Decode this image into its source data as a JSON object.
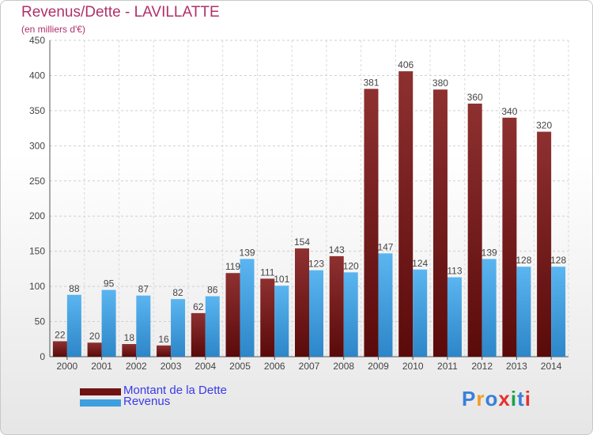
{
  "header": {
    "title": "Revenus/Dette - LAVILLATTE",
    "subtitle": "(en milliers d'€)"
  },
  "logo": {
    "text": "Proxiti",
    "letter_colors": [
      "#3a7fd9",
      "#f29c1f",
      "#3a7fd9",
      "#e4312f",
      "#1aa34a",
      "#3a7fd9",
      "#e4312f"
    ]
  },
  "chart_data": {
    "type": "bar",
    "title": "Revenus/Dette - LAVILLATTE",
    "subtitle": "(en milliers d'€)",
    "categories": [
      "2000",
      "2001",
      "2002",
      "2003",
      "2004",
      "2005",
      "2006",
      "2007",
      "2008",
      "2009",
      "2010",
      "2011",
      "2012",
      "2013",
      "2014"
    ],
    "series": [
      {
        "name": "Montant de la Dette",
        "color": "#7a1c1c",
        "values": [
          22,
          20,
          18,
          16,
          62,
          119,
          111,
          154,
          143,
          381,
          406,
          380,
          360,
          340,
          320
        ]
      },
      {
        "name": "Revenus",
        "color": "#3d9fe0",
        "values": [
          88,
          95,
          87,
          82,
          86,
          139,
          101,
          123,
          120,
          147,
          124,
          113,
          139,
          128,
          128
        ]
      }
    ],
    "y_ticks": [
      "0",
      "50",
      "100",
      "150",
      "200",
      "250",
      "300",
      "350",
      "400",
      "450"
    ],
    "ylim": [
      0,
      450
    ],
    "grid": true,
    "legend_position": "bottom-left"
  }
}
